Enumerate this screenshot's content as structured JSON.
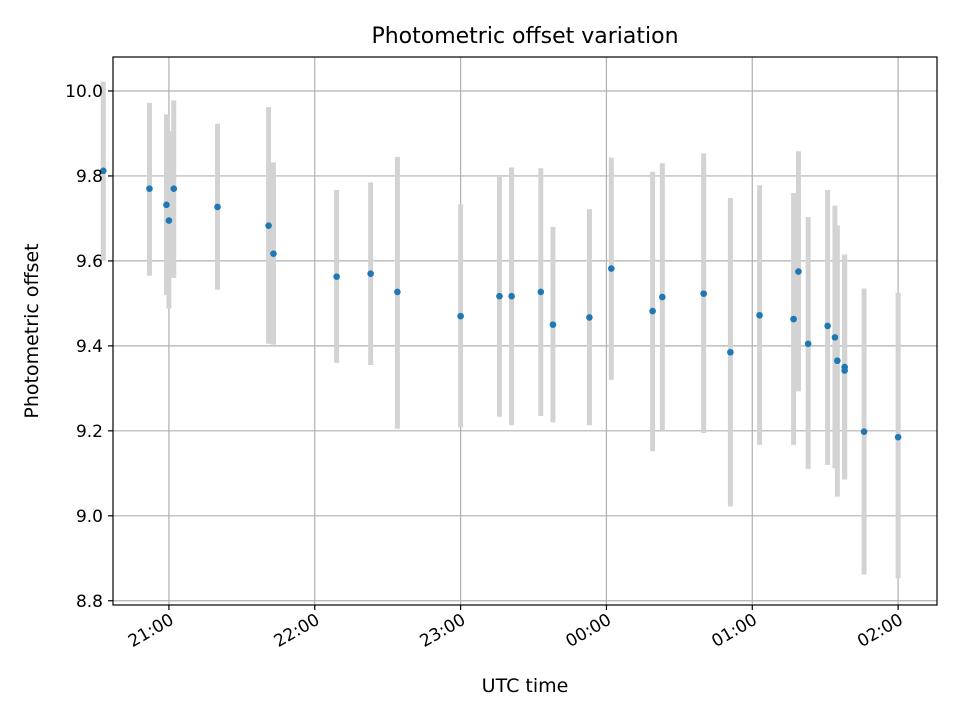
{
  "chart_data": {
    "type": "scatter",
    "title": "Photometric offset variation",
    "xlabel": "UTC time",
    "ylabel": "Photometric offset",
    "x_axis_kind": "time",
    "xlim": [
      "20:37",
      "02:16"
    ],
    "ylim": [
      8.79,
      10.08
    ],
    "x_ticks": [
      "21:00",
      "22:00",
      "23:00",
      "00:00",
      "01:00",
      "02:00"
    ],
    "y_ticks": [
      "8.8",
      "9.0",
      "9.2",
      "9.4",
      "9.6",
      "9.8",
      "10.0"
    ],
    "grid": true,
    "marker_color": "#1f77b4",
    "errorbar_color": "#d3d3d3",
    "series": [
      {
        "points": [
          {
            "t": "20:33",
            "y": 9.812,
            "lo": 9.6,
            "hi": 10.022
          },
          {
            "t": "20:52",
            "y": 9.77,
            "lo": 9.565,
            "hi": 9.972
          },
          {
            "t": "20:59",
            "y": 9.732,
            "lo": 9.52,
            "hi": 9.945
          },
          {
            "t": "21:00",
            "y": 9.695,
            "lo": 9.488,
            "hi": 9.905
          },
          {
            "t": "21:02",
            "y": 9.77,
            "lo": 9.56,
            "hi": 9.978
          },
          {
            "t": "21:20",
            "y": 9.727,
            "lo": 9.532,
            "hi": 9.923
          },
          {
            "t": "21:41",
            "y": 9.683,
            "lo": 9.405,
            "hi": 9.962
          },
          {
            "t": "21:43",
            "y": 9.617,
            "lo": 9.403,
            "hi": 9.832
          },
          {
            "t": "22:09",
            "y": 9.563,
            "lo": 9.36,
            "hi": 9.767
          },
          {
            "t": "22:23",
            "y": 9.57,
            "lo": 9.355,
            "hi": 9.785
          },
          {
            "t": "22:34",
            "y": 9.527,
            "lo": 9.205,
            "hi": 9.845
          },
          {
            "t": "23:00",
            "y": 9.47,
            "lo": 9.208,
            "hi": 9.733
          },
          {
            "t": "23:16",
            "y": 9.517,
            "lo": 9.233,
            "hi": 9.8
          },
          {
            "t": "23:21",
            "y": 9.517,
            "lo": 9.213,
            "hi": 9.82
          },
          {
            "t": "23:33",
            "y": 9.527,
            "lo": 9.235,
            "hi": 9.818
          },
          {
            "t": "23:38",
            "y": 9.45,
            "lo": 9.22,
            "hi": 9.68
          },
          {
            "t": "23:53",
            "y": 9.467,
            "lo": 9.213,
            "hi": 9.722
          },
          {
            "t": "00:02",
            "y": 9.582,
            "lo": 9.32,
            "hi": 9.843
          },
          {
            "t": "00:19",
            "y": 9.482,
            "lo": 9.152,
            "hi": 9.81
          },
          {
            "t": "00:23",
            "y": 9.515,
            "lo": 9.2,
            "hi": 9.83
          },
          {
            "t": "00:40",
            "y": 9.523,
            "lo": 9.195,
            "hi": 9.853
          },
          {
            "t": "00:51",
            "y": 9.385,
            "lo": 9.022,
            "hi": 9.748
          },
          {
            "t": "01:03",
            "y": 9.472,
            "lo": 9.167,
            "hi": 9.778
          },
          {
            "t": "01:17",
            "y": 9.463,
            "lo": 9.167,
            "hi": 9.76
          },
          {
            "t": "01:19",
            "y": 9.575,
            "lo": 9.293,
            "hi": 9.858
          },
          {
            "t": "01:23",
            "y": 9.405,
            "lo": 9.11,
            "hi": 9.703
          },
          {
            "t": "01:31",
            "y": 9.447,
            "lo": 9.12,
            "hi": 9.767
          },
          {
            "t": "01:34",
            "y": 9.42,
            "lo": 9.112,
            "hi": 9.73
          },
          {
            "t": "01:35",
            "y": 9.365,
            "lo": 9.045,
            "hi": 9.683
          },
          {
            "t": "01:38",
            "y": 9.342,
            "lo": 9.085,
            "hi": 9.615
          },
          {
            "t": "01:38",
            "y": 9.35,
            "lo": 9.088,
            "hi": 9.613
          },
          {
            "t": "01:46",
            "y": 9.198,
            "lo": 8.862,
            "hi": 9.535
          },
          {
            "t": "02:00",
            "y": 9.185,
            "lo": 8.853,
            "hi": 9.525
          }
        ]
      }
    ]
  }
}
